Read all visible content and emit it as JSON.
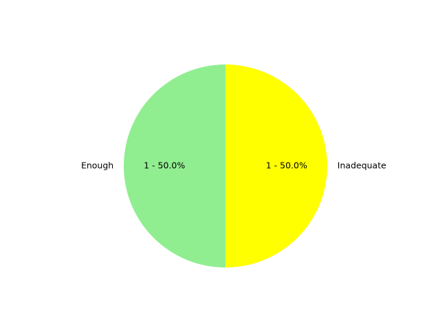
{
  "chart_data": {
    "type": "pie",
    "slices": [
      {
        "label": "Enough",
        "value": 1,
        "percent": 50.0,
        "color": "#90ee90",
        "autopct_text": "1 - 50.0%"
      },
      {
        "label": "Inadequate",
        "value": 1,
        "percent": 50.0,
        "color": "#ffff00",
        "autopct_text": "1 - 50.0%"
      }
    ],
    "start_angle_deg": 90,
    "direction": "counterclockwise"
  }
}
